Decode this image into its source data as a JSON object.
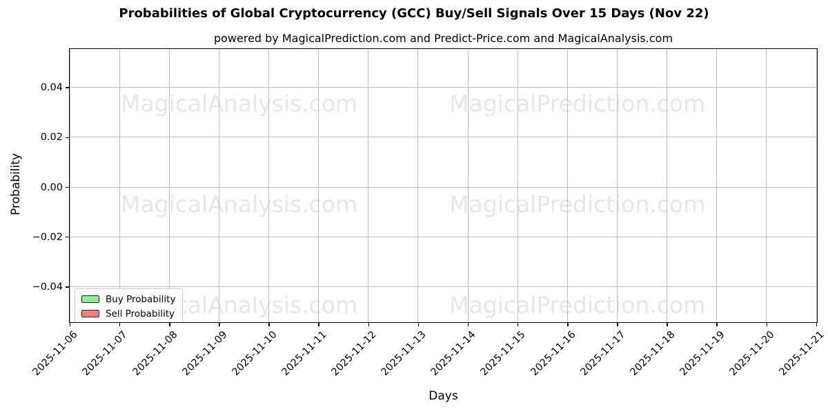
{
  "figure": {
    "title": "Probabilities of Global Cryptocurrency (GCC) Buy/Sell Signals Over 15 Days (Nov 22)",
    "subtitle": "powered by MagicalPrediction.com and Predict-Price.com and MagicalAnalysis.com"
  },
  "chart_data": {
    "type": "line",
    "title": "Probabilities of Global Cryptocurrency (GCC) Buy/Sell Signals Over 15 Days (Nov 22)",
    "subtitle": "powered by MagicalPrediction.com and Predict-Price.com and MagicalAnalysis.com",
    "xlabel": "Days",
    "ylabel": "Probability",
    "x": [
      "2025-11-06",
      "2025-11-07",
      "2025-11-08",
      "2025-11-09",
      "2025-11-10",
      "2025-11-11",
      "2025-11-12",
      "2025-11-13",
      "2025-11-14",
      "2025-11-15",
      "2025-11-16",
      "2025-11-17",
      "2025-11-18",
      "2025-11-19",
      "2025-11-20",
      "2025-11-21"
    ],
    "series": [
      {
        "name": "Buy Probability",
        "color": "#90ee90",
        "values": []
      },
      {
        "name": "Sell Probability",
        "color": "#f08080",
        "values": []
      }
    ],
    "note": "plot area is empty - no line data is rendered in the visible chart",
    "ylim": [
      -0.054,
      0.0554
    ],
    "yticks": [
      0.04,
      0.02,
      0.0,
      -0.02,
      -0.04
    ],
    "ytick_labels": [
      "0.04",
      "0.02",
      "0.00",
      "−0.02",
      "−0.04"
    ],
    "grid": true,
    "legend_position": "lower left",
    "watermark_left": "MagicalAnalysis.com",
    "watermark_right": "MagicalPrediction.com"
  },
  "legend": {
    "items": [
      {
        "label": "Buy Probability",
        "color": "#90ee90"
      },
      {
        "label": "Sell Probability",
        "color": "#f08080"
      }
    ]
  },
  "colors": {
    "gridline": "#bcbcbc",
    "spine": "#000000",
    "watermark": "#e7e7e7",
    "background": "#ffffff"
  }
}
